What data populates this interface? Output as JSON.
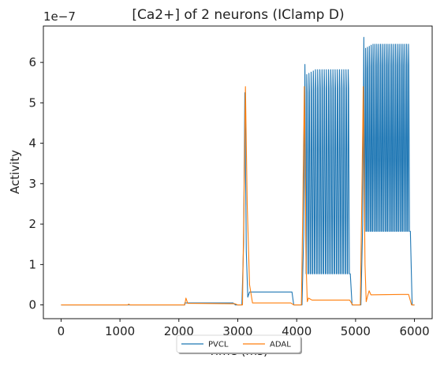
{
  "chart_data": {
    "type": "line",
    "title": "[Ca2+] of 2 neurons (IClamp D)",
    "xlabel": "Time (ms)",
    "ylabel": "Activity",
    "offset_text": "1e−7",
    "xlim": [
      -300,
      6300
    ],
    "ylim": [
      -0.34,
      6.9
    ],
    "y_scale_note": "values in units of 1e-7",
    "xticks": [
      0,
      1000,
      2000,
      3000,
      4000,
      5000,
      6000
    ],
    "yticks": [
      0,
      1,
      2,
      3,
      4,
      5,
      6
    ],
    "legend": {
      "placement": "bottom-center",
      "entries": [
        "PVCL",
        "ADAL"
      ]
    },
    "series": [
      {
        "name": "PVCL",
        "color": "#1f77b4",
        "pulses": [
          {
            "start": 3100,
            "peak": 5.25,
            "plateau": 0.32,
            "plateau_end": 3920,
            "osc": null
          },
          {
            "start": 4120,
            "peak": 5.95,
            "plateau": 0.32,
            "plateau_end": 4900,
            "osc": {
              "low": 0.77,
              "high_start": 5.7,
              "high_end": 5.82,
              "count": 20,
              "end": 4900
            }
          },
          {
            "start": 5120,
            "peak": 6.62,
            "plateau": 0.32,
            "plateau_end": 5920,
            "osc": {
              "low": 1.82,
              "high_start": 6.35,
              "high_end": 6.45,
              "count": 24,
              "end": 5920
            }
          }
        ],
        "baseline_segments": [
          {
            "x0": 0,
            "x1": 2100,
            "y": 0.0
          },
          {
            "x0": 2100,
            "x1": 2920,
            "y": 0.05
          }
        ],
        "end_x": 6000
      },
      {
        "name": "ADAL",
        "color": "#ff7f0e",
        "points": [
          [
            0,
            0
          ],
          [
            1130,
            0.0
          ],
          [
            1150,
            0.02
          ],
          [
            1170,
            0.0
          ],
          [
            2100,
            0.0
          ],
          [
            2120,
            0.17
          ],
          [
            2150,
            0.04
          ],
          [
            2950,
            0.03
          ],
          [
            3000,
            0.0
          ],
          [
            3080,
            0.0
          ],
          [
            3100,
            2.0
          ],
          [
            3130,
            5.4
          ],
          [
            3160,
            2.5
          ],
          [
            3200,
            0.5
          ],
          [
            3250,
            0.05
          ],
          [
            3900,
            0.05
          ],
          [
            3950,
            0.0
          ],
          [
            4080,
            0.0
          ],
          [
            4100,
            2.0
          ],
          [
            4130,
            5.4
          ],
          [
            4160,
            1.0
          ],
          [
            4180,
            0.08
          ],
          [
            4200,
            0.17
          ],
          [
            4260,
            0.12
          ],
          [
            4900,
            0.12
          ],
          [
            4950,
            0.0
          ],
          [
            5080,
            0.0
          ],
          [
            5100,
            2.0
          ],
          [
            5130,
            5.4
          ],
          [
            5160,
            1.0
          ],
          [
            5180,
            0.08
          ],
          [
            5200,
            0.2
          ],
          [
            5230,
            0.35
          ],
          [
            5260,
            0.25
          ],
          [
            5900,
            0.26
          ],
          [
            5950,
            0.0
          ],
          [
            6000,
            0.0
          ]
        ]
      }
    ]
  }
}
